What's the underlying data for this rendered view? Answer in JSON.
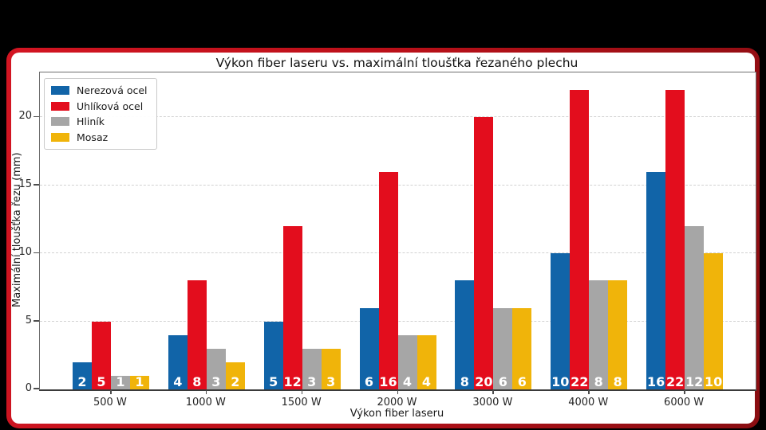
{
  "frame": {
    "background": "#000000",
    "card_background": "#ffffff",
    "border_gradient_start": "#d31522",
    "border_gradient_mid": "#bb1019",
    "border_gradient_end": "#8a0e12"
  },
  "chart_data": {
    "type": "bar",
    "title": "Výkon fiber laseru vs. maximální tloušťka řezaného plechu",
    "xlabel": "Výkon fiber laseru",
    "ylabel": "Maximální tloušťka řezu (mm)",
    "categories": [
      "500 W",
      "1000 W",
      "1500 W",
      "2000 W",
      "3000 W",
      "4000 W",
      "6000 W"
    ],
    "series": [
      {
        "name": "Nerezová ocel",
        "color": "#1164a8",
        "values": [
          2,
          4,
          5,
          6,
          8,
          10,
          16
        ]
      },
      {
        "name": "Uhlíková ocel",
        "color": "#e30d1d",
        "values": [
          5,
          8,
          12,
          16,
          20,
          22,
          22
        ]
      },
      {
        "name": "Hliník",
        "color": "#a6a6a6",
        "values": [
          1,
          3,
          3,
          4,
          6,
          8,
          12
        ]
      },
      {
        "name": "Mosaz",
        "color": "#f0b40a",
        "values": [
          1,
          2,
          3,
          4,
          6,
          8,
          10
        ]
      }
    ],
    "yticks": [
      0,
      5,
      10,
      15,
      20
    ],
    "ylim": [
      0,
      23.3
    ],
    "grid": {
      "axis": "y",
      "style": "dashed",
      "color": "#d2d2d2",
      "lines_at": [
        5,
        10,
        15,
        20
      ]
    },
    "legend_position": "upper-left",
    "value_labels": {
      "color": "#ffffff",
      "weight": "bold",
      "position": "inside-bar-base"
    }
  }
}
